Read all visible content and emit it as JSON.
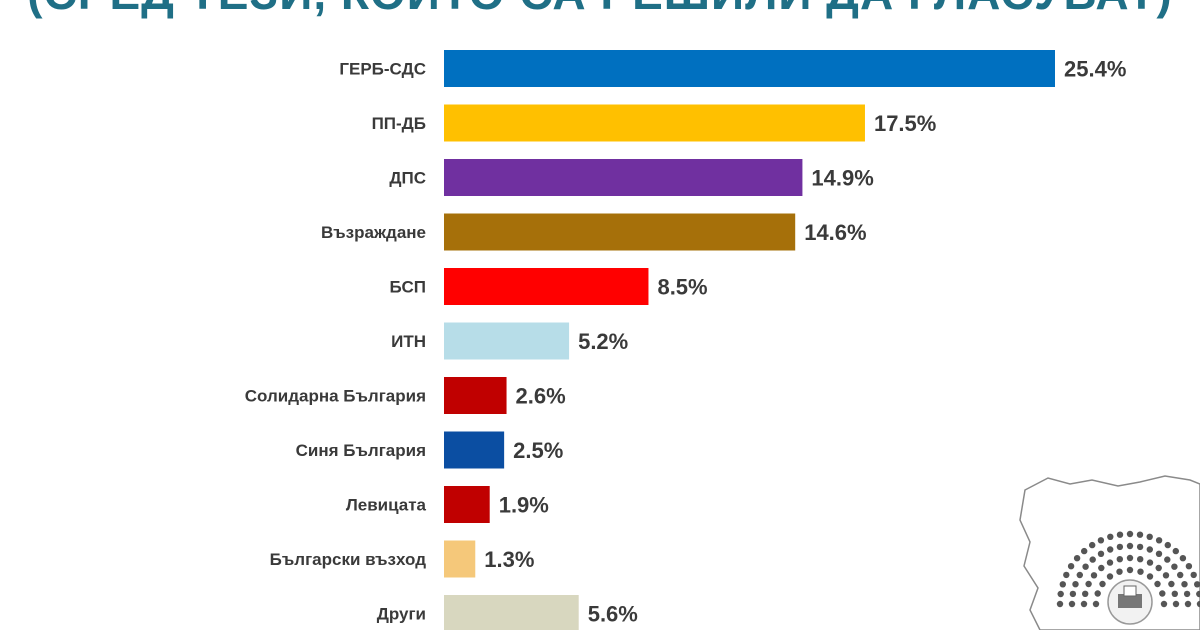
{
  "chart_data": {
    "type": "bar",
    "orientation": "horizontal",
    "title": "(СРЕД ТЕЗИ, КОИТО СА РЕШИЛИ ДА ГЛАСУВАТ)",
    "categories": [
      "ГЕРБ-СДС",
      "ПП-ДБ",
      "ДПС",
      "Възраждане",
      "БСП",
      "ИТН",
      "Солидарна България",
      "Синя България",
      "Левицата",
      "Български възход",
      "Други"
    ],
    "values": [
      25.4,
      17.5,
      14.9,
      14.6,
      8.5,
      5.2,
      2.6,
      2.5,
      1.9,
      1.3,
      5.6
    ],
    "value_labels": [
      "25.4%",
      "17.5%",
      "14.9%",
      "14.6%",
      "8.5%",
      "5.2%",
      "2.6%",
      "2.5%",
      "1.9%",
      "1.3%",
      "5.6%"
    ],
    "colors": [
      "#0070c0",
      "#ffc000",
      "#7030a0",
      "#a6700a",
      "#ff0000",
      "#b7dde8",
      "#c00000",
      "#0b4ea2",
      "#c00000",
      "#f5c87a",
      "#d8d7bf"
    ],
    "unit": "%",
    "xlabel": "",
    "ylabel": "",
    "xlim": [
      0,
      25.4
    ],
    "grid": false,
    "legend": "none"
  }
}
